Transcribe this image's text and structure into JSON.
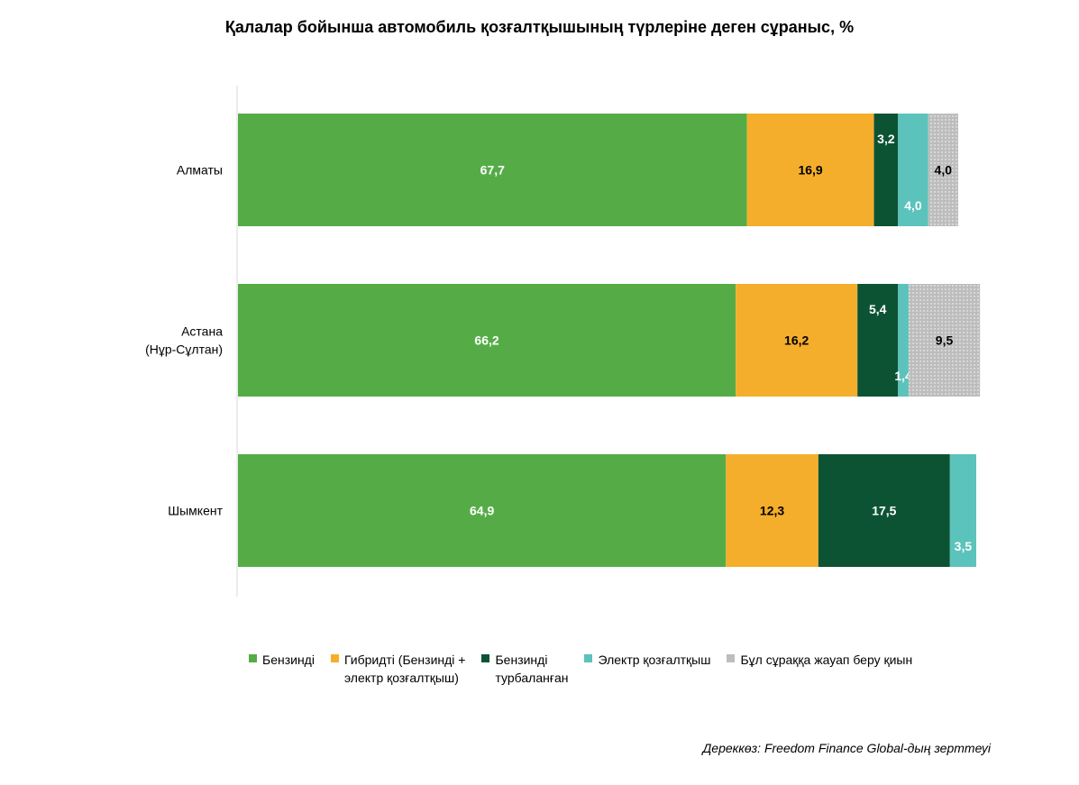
{
  "chart_data": {
    "type": "bar",
    "orientation": "horizontal",
    "stacked": true,
    "title": "Қалалар бойынша автомобиль қозғалтқышының түрлеріне деген сұраныс, %",
    "categories": [
      "Алматы",
      "Астана (Нұр-Сұлтан)",
      "Шымкент"
    ],
    "category_lines": [
      [
        "Алматы"
      ],
      [
        "Астана",
        "(Нұр-Сұлтан)"
      ],
      [
        "Шымкент"
      ]
    ],
    "series": [
      {
        "name": "Бензинді",
        "color": "#55ac46",
        "values": [
          67.7,
          66.2,
          64.9
        ],
        "labels": [
          "67,7",
          "66,2",
          "64,9"
        ]
      },
      {
        "name": "Гибридті (Бензинді + электр қозғалтқыш)",
        "color": "#f5ae2b",
        "values": [
          16.9,
          16.2,
          12.3
        ],
        "labels": [
          "16,9",
          "16,2",
          "12,3"
        ]
      },
      {
        "name": "Бензинді турбаланған",
        "color": "#0c5334",
        "values": [
          3.2,
          5.4,
          17.5
        ],
        "labels": [
          "3,2",
          "5,4",
          "17,5"
        ]
      },
      {
        "name": "Электр қозғалтқыш",
        "color": "#5bc3bb",
        "values": [
          4.0,
          1.4,
          3.5
        ],
        "labels": [
          "4,0",
          "1,4",
          "3,5"
        ]
      },
      {
        "name": "Бұл сұраққа жауап беру қиын",
        "color": "#bdbdbd",
        "pattern": "dotted",
        "values": [
          4.0,
          9.5,
          0
        ],
        "labels": [
          "4,0",
          "9,5",
          ""
        ]
      }
    ],
    "xlim": [
      0,
      100
    ],
    "legend_position": "bottom",
    "grid": false
  },
  "legend": {
    "items": [
      {
        "lines": [
          "Бензинді"
        ],
        "color": "#55ac46"
      },
      {
        "lines": [
          "Гибридті (Бензинді +",
          "электр қозғалтқыш)"
        ],
        "color": "#f5ae2b"
      },
      {
        "lines": [
          "Бензинді",
          "турбаланған"
        ],
        "color": "#0c5334"
      },
      {
        "lines": [
          "Электр қозғалтқыш"
        ],
        "color": "#5bc3bb"
      },
      {
        "lines": [
          "Бұл сұраққа жауап беру қиын"
        ],
        "color": "#bdbdbd"
      }
    ]
  },
  "source_note": "Дереккөз: Freedom Finance Global-дың зерттеуі"
}
